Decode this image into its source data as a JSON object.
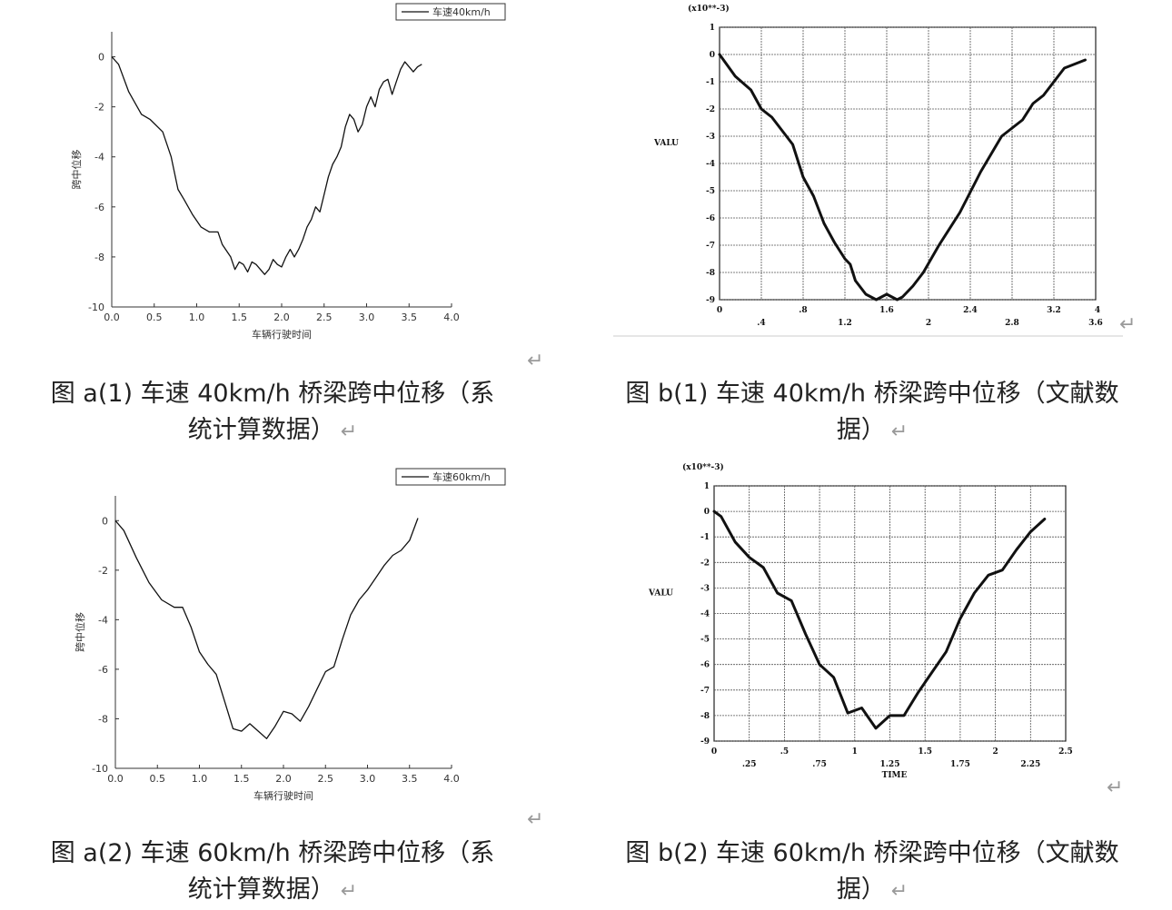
{
  "chart_data": [
    {
      "type": "line",
      "xlabel": "车辆行驶时间",
      "ylabel": "跨中位移",
      "xlim": [
        0,
        4
      ],
      "ylim": [
        -10,
        1
      ],
      "xticks": [
        "0.0",
        "0.5",
        "1.0",
        "1.5",
        "2.0",
        "2.5",
        "3.0",
        "3.5",
        "4.0"
      ],
      "yticks": [
        "0",
        "-2",
        "-4",
        "-6",
        "-8",
        "-10"
      ],
      "legend": "top-right",
      "grid": false,
      "series": [
        {
          "name": "车速40km/h",
          "x": [
            0,
            0.08,
            0.2,
            0.35,
            0.45,
            0.6,
            0.7,
            0.78,
            0.85,
            0.95,
            1.05,
            1.15,
            1.25,
            1.3,
            1.4,
            1.45,
            1.5,
            1.55,
            1.6,
            1.65,
            1.7,
            1.75,
            1.8,
            1.85,
            1.9,
            1.95,
            2.0,
            2.05,
            2.1,
            2.15,
            2.2,
            2.25,
            2.3,
            2.35,
            2.4,
            2.45,
            2.5,
            2.55,
            2.6,
            2.65,
            2.7,
            2.75,
            2.8,
            2.85,
            2.9,
            2.95,
            3.0,
            3.05,
            3.1,
            3.15,
            3.2,
            3.25,
            3.3,
            3.35,
            3.4,
            3.45,
            3.5,
            3.55,
            3.6,
            3.65
          ],
          "y": [
            0,
            -0.3,
            -1.4,
            -2.3,
            -2.5,
            -3.0,
            -4.0,
            -5.3,
            -5.7,
            -6.3,
            -6.8,
            -7.0,
            -7.0,
            -7.5,
            -8.0,
            -8.5,
            -8.2,
            -8.3,
            -8.6,
            -8.2,
            -8.3,
            -8.5,
            -8.7,
            -8.5,
            -8.1,
            -8.3,
            -8.4,
            -8.0,
            -7.7,
            -8.0,
            -7.7,
            -7.3,
            -6.8,
            -6.5,
            -6.0,
            -6.2,
            -5.5,
            -4.8,
            -4.3,
            -4.0,
            -3.6,
            -2.8,
            -2.3,
            -2.5,
            -3.0,
            -2.7,
            -2.0,
            -1.6,
            -2.0,
            -1.3,
            -1.0,
            -0.9,
            -1.5,
            -1.0,
            -0.5,
            -0.2,
            -0.4,
            -0.6,
            -0.4,
            -0.3
          ]
        }
      ]
    },
    {
      "type": "line",
      "xlabel": "",
      "ylabel": "VALU",
      "scale_label": "(x10**-3)",
      "xlim": [
        0,
        3.6
      ],
      "ylim": [
        -9,
        1
      ],
      "xticks_top": [
        "0",
        ".8",
        "1.6",
        "2.4",
        "3.2",
        "4"
      ],
      "xticks_bottom": [
        ".4",
        "1.2",
        "2",
        "2.8",
        "3.6"
      ],
      "yticks": [
        "1",
        "0",
        "-1",
        "-2",
        "-3",
        "-4",
        "-5",
        "-6",
        "-7",
        "-8",
        "-9"
      ],
      "grid": true,
      "series": [
        {
          "x": [
            0,
            0.15,
            0.3,
            0.4,
            0.5,
            0.6,
            0.7,
            0.8,
            0.9,
            1.0,
            1.1,
            1.2,
            1.25,
            1.3,
            1.4,
            1.5,
            1.6,
            1.7,
            1.75,
            1.85,
            1.95,
            2.1,
            2.3,
            2.5,
            2.7,
            2.9,
            3.0,
            3.1,
            3.2,
            3.3,
            3.5
          ],
          "y": [
            0,
            -0.8,
            -1.3,
            -2.0,
            -2.3,
            -2.8,
            -3.3,
            -4.5,
            -5.2,
            -6.2,
            -6.9,
            -7.5,
            -7.7,
            -8.3,
            -8.8,
            -9.0,
            -8.8,
            -9.0,
            -8.9,
            -8.5,
            -8.0,
            -7.0,
            -5.8,
            -4.3,
            -3.0,
            -2.4,
            -1.8,
            -1.5,
            -1.0,
            -0.5,
            -0.2
          ]
        }
      ]
    },
    {
      "type": "line",
      "xlabel": "车辆行驶时间",
      "ylabel": "跨中位移",
      "xlim": [
        0,
        4
      ],
      "ylim": [
        -10,
        1
      ],
      "xticks": [
        "0.0",
        "0.5",
        "1.0",
        "1.5",
        "2.0",
        "2.5",
        "3.0",
        "3.5",
        "4.0"
      ],
      "yticks": [
        "0",
        "-2",
        "-4",
        "-6",
        "-8",
        "-10"
      ],
      "legend": "top-right",
      "grid": false,
      "series": [
        {
          "name": "车速60km/h",
          "x": [
            0,
            0.1,
            0.25,
            0.4,
            0.55,
            0.7,
            0.8,
            0.9,
            1.0,
            1.1,
            1.2,
            1.3,
            1.4,
            1.5,
            1.6,
            1.7,
            1.8,
            1.9,
            2.0,
            2.1,
            2.2,
            2.3,
            2.4,
            2.5,
            2.6,
            2.7,
            2.8,
            2.9,
            3.0,
            3.1,
            3.2,
            3.3,
            3.4,
            3.5,
            3.6
          ],
          "y": [
            0,
            -0.4,
            -1.5,
            -2.5,
            -3.2,
            -3.5,
            -3.5,
            -4.3,
            -5.3,
            -5.8,
            -6.2,
            -7.3,
            -8.4,
            -8.5,
            -8.2,
            -8.5,
            -8.8,
            -8.3,
            -7.7,
            -7.8,
            -8.1,
            -7.5,
            -6.8,
            -6.1,
            -5.9,
            -4.8,
            -3.8,
            -3.2,
            -2.8,
            -2.3,
            -1.8,
            -1.4,
            -1.2,
            -0.8,
            0.1
          ]
        }
      ]
    },
    {
      "type": "line",
      "xlabel": "TIME",
      "ylabel": "VALU",
      "scale_label": "(x10**-3)",
      "xlim": [
        0,
        2.5
      ],
      "ylim": [
        -9,
        1
      ],
      "xticks_top": [
        "0",
        ".5",
        "1",
        "1.5",
        "2",
        "2.5"
      ],
      "xticks_bottom": [
        ".25",
        ".75",
        "1.25",
        "1.75",
        "2.25"
      ],
      "yticks": [
        "1",
        "0",
        "-1",
        "-2",
        "-3",
        "-4",
        "-5",
        "-6",
        "-7",
        "-8",
        "-9"
      ],
      "grid": true,
      "series": [
        {
          "x": [
            0,
            0.05,
            0.15,
            0.25,
            0.35,
            0.45,
            0.55,
            0.65,
            0.75,
            0.85,
            0.95,
            1.05,
            1.15,
            1.25,
            1.35,
            1.45,
            1.55,
            1.65,
            1.75,
            1.85,
            1.95,
            2.05,
            2.15,
            2.25,
            2.35
          ],
          "y": [
            0,
            -0.2,
            -1.2,
            -1.8,
            -2.2,
            -3.2,
            -3.5,
            -4.8,
            -6.0,
            -6.5,
            -7.9,
            -7.7,
            -8.5,
            -8.0,
            -8.0,
            -7.1,
            -6.3,
            -5.5,
            -4.2,
            -3.2,
            -2.5,
            -2.3,
            -1.5,
            -0.8,
            -0.3
          ]
        }
      ]
    }
  ],
  "captions": {
    "a1_line1": "图 a(1) 车速 40km/h 桥梁跨中位移（系",
    "a1_line2": "统计算数据）",
    "b1_line1": "图 b(1) 车速 40km/h 桥梁跨中位移（文献数",
    "b1_line2": "据）",
    "a2_line1": "图 a(2) 车速 60km/h 桥梁跨中位移（系",
    "a2_line2": "统计算数据）",
    "b2_line1": "图 b(2) 车速 60km/h 桥梁跨中位移（文献数",
    "b2_line2": "据）",
    "return_mark": "↵"
  }
}
